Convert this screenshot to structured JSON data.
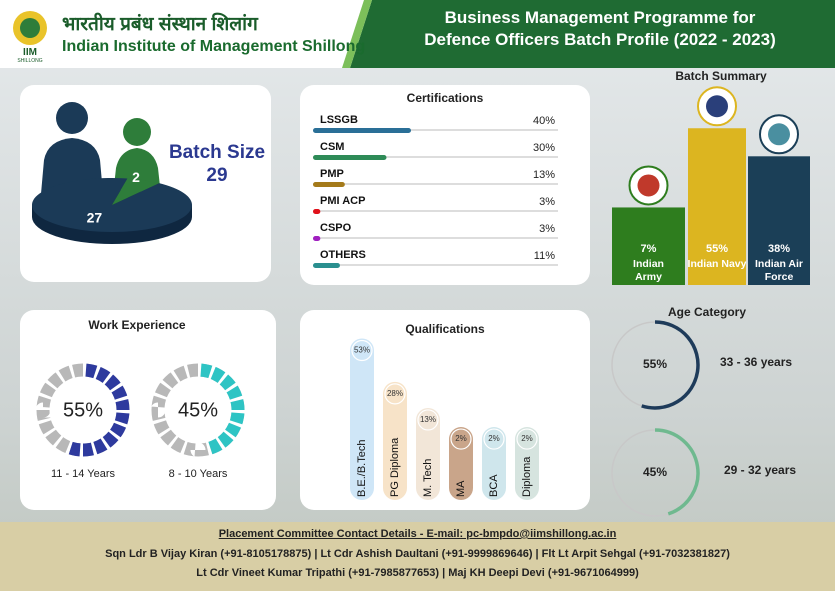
{
  "header": {
    "logo_text": "IIM",
    "logo_subtext": "SHILLONG",
    "name_hindi": "भारतीय प्रबंध संस्थान शिलांग",
    "name": "Indian Institute of Management Shillong",
    "title": [
      "Business Management Programme for",
      "Defence Officers Batch Profile (2022 - 2023)"
    ]
  },
  "batch": {
    "label": "Batch Size",
    "size": 29
  },
  "chart_data": [
    {
      "type": "pie",
      "values": [
        27,
        2
      ],
      "colors": [
        "#1b3a57",
        "#2e7d3a"
      ]
    },
    {
      "type": "progress",
      "title": "Certifications",
      "categories": [
        "LSSGB",
        "CSM",
        "PMP",
        "PMI ACP",
        "CSPO",
        "OTHERS"
      ],
      "values": [
        40,
        30,
        13,
        3,
        3,
        11
      ],
      "value_labels": [
        "40%",
        "30%",
        "13%",
        "3%",
        "3%",
        "11%"
      ],
      "colors": [
        "#2a6f97",
        "#2e8b57",
        "#a47a1a",
        "#e0101a",
        "#a020c0",
        "#2a8f8f"
      ],
      "xlim": [
        0,
        100
      ]
    },
    {
      "type": "column",
      "title": "Batch Summary",
      "categories": [
        "Indian Army",
        "Indian Navy",
        "Indian Air Force"
      ],
      "values": [
        7,
        55,
        38
      ],
      "value_labels": [
        "7%",
        "55%",
        "38%"
      ],
      "colors": [
        "#2e7d1e",
        "#dcb520",
        "#1b3f57"
      ],
      "ylim": [
        -40,
        60
      ]
    },
    {
      "type": "segmented-donut",
      "title": "Work Experience",
      "categories": [
        "11 - 14 Years",
        "8 - 10 Years"
      ],
      "values": [
        55,
        45
      ],
      "value_labels": [
        "55%",
        "45%"
      ],
      "colors": [
        "#2e3a9e",
        "#2ec4c4"
      ]
    },
    {
      "type": "pill-column",
      "title": "Qualifications",
      "categories": [
        "B.E./B.Tech",
        "PG Diploma",
        "M. Tech",
        "MA",
        "BCA",
        "Diploma"
      ],
      "values": [
        53,
        28,
        13,
        2,
        2,
        2
      ],
      "value_labels": [
        "53%",
        "28%",
        "13%",
        "2%",
        "2%",
        "2%"
      ],
      "colors": [
        "#cfe6f7",
        "#f7e3c8",
        "#f2e6d8",
        "#c9a58a",
        "#cfe6ec",
        "#d6e4df"
      ],
      "ylim": [
        -40,
        55
      ]
    },
    {
      "type": "arc",
      "title": "Age Category",
      "categories": [
        "33 - 36 years",
        "29 - 32 years"
      ],
      "values": [
        55,
        45
      ],
      "value_labels": [
        "55%",
        "45%"
      ],
      "colors": [
        "#1e3b5a",
        "#6fb98f"
      ]
    }
  ],
  "footer": {
    "heading": "Placement Committee Contact Details - E-mail: pc-bmpdo@iimshillong.ac.in",
    "lines": [
      "Sqn Ldr B Vijay Kiran (+91-8105178875) | Lt Cdr Ashish Daultani (+91-9999869646) | Flt Lt Arpit Sehgal (+91-7032381827)",
      "Lt Cdr Vineet Kumar Tripathi (+91-7985877653) | Maj KH Deepi Devi (+91-9671064999)"
    ]
  }
}
